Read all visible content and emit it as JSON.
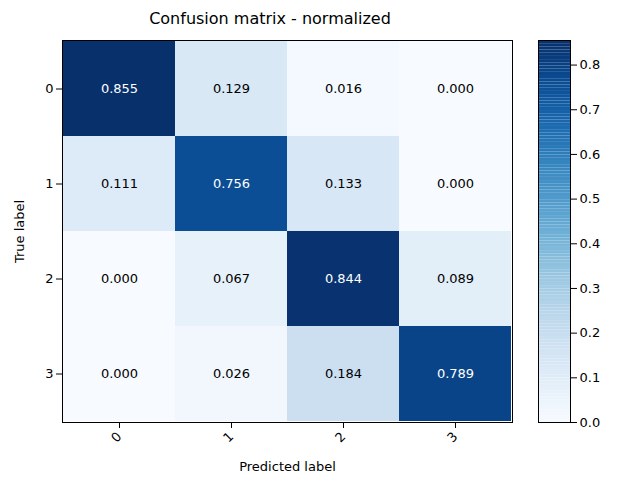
{
  "chart_data": {
    "type": "heatmap",
    "title": "Confusion matrix - normalized",
    "x_label": "Predicted label",
    "y_label": "True label",
    "categories": [
      "0",
      "1",
      "2",
      "3"
    ],
    "rows": [
      "0",
      "1",
      "2",
      "3"
    ],
    "values": [
      [
        0.855,
        0.129,
        0.016,
        0
      ],
      [
        0.111,
        0.756,
        0.133,
        0
      ],
      [
        0,
        0.067,
        0.844,
        0.089
      ],
      [
        0,
        0.026,
        0.184,
        0.789
      ]
    ],
    "value_labels": [
      [
        "0.855",
        "0.129",
        "0.016",
        "0.000"
      ],
      [
        "0.111",
        "0.756",
        "0.133",
        "0.000"
      ],
      [
        "0.000",
        "0.067",
        "0.844",
        "0.089"
      ],
      [
        "0.000",
        "0.026",
        "0.184",
        "0.789"
      ]
    ],
    "data_labels": true,
    "color": "Blues",
    "colorbar_range": [
      0,
      0.855
    ],
    "colorbar_ticks": [
      {
        "value": 0,
        "label": "0.0"
      },
      {
        "value": 0.1,
        "label": "0.1"
      },
      {
        "value": 0.2,
        "label": "0.2"
      },
      {
        "value": 0.3,
        "label": "0.3"
      },
      {
        "value": 0.4,
        "label": "0.4"
      },
      {
        "value": 0.5,
        "label": "0.5"
      },
      {
        "value": 0.6,
        "label": "0.6"
      },
      {
        "value": 0.7,
        "label": "0.7"
      },
      {
        "value": 0.8,
        "label": "0.8"
      }
    ]
  }
}
